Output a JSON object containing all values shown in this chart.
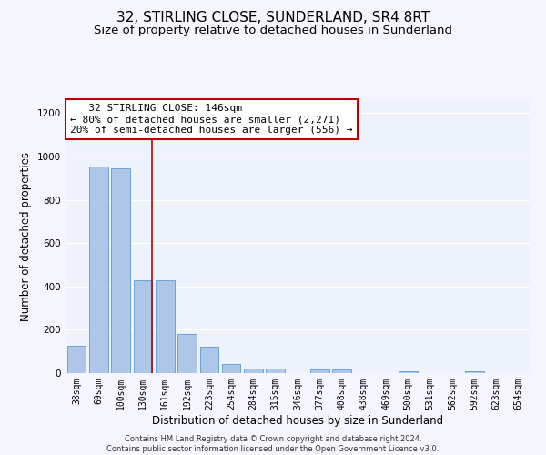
{
  "title": "32, STIRLING CLOSE, SUNDERLAND, SR4 8RT",
  "subtitle": "Size of property relative to detached houses in Sunderland",
  "xlabel": "Distribution of detached houses by size in Sunderland",
  "ylabel": "Number of detached properties",
  "footer_line1": "Contains HM Land Registry data © Crown copyright and database right 2024.",
  "footer_line2": "Contains public sector information licensed under the Open Government Licence v3.0.",
  "categories": [
    "38sqm",
    "69sqm",
    "100sqm",
    "130sqm",
    "161sqm",
    "192sqm",
    "223sqm",
    "254sqm",
    "284sqm",
    "315sqm",
    "346sqm",
    "377sqm",
    "408sqm",
    "438sqm",
    "469sqm",
    "500sqm",
    "531sqm",
    "562sqm",
    "592sqm",
    "623sqm",
    "654sqm"
  ],
  "values": [
    125,
    955,
    945,
    430,
    430,
    180,
    120,
    42,
    20,
    20,
    0,
    15,
    15,
    0,
    0,
    8,
    0,
    0,
    8,
    0,
    0
  ],
  "bar_color": "#aec6e8",
  "bar_edge_color": "#5b9bd5",
  "annotation_line1": "   32 STIRLING CLOSE: 146sqm",
  "annotation_line2": "← 80% of detached houses are smaller (2,271)",
  "annotation_line3": "20% of semi-detached houses are larger (556) →",
  "annotation_box_color": "#ffffff",
  "annotation_box_edge_color": "#c00000",
  "vline_color": "#c00000",
  "ylim": [
    0,
    1260
  ],
  "yticks": [
    0,
    200,
    400,
    600,
    800,
    1000,
    1200
  ],
  "background_color": "#eef2fb",
  "grid_color": "#ffffff",
  "title_fontsize": 11,
  "subtitle_fontsize": 9.5,
  "annotation_fontsize": 8,
  "ylabel_fontsize": 8.5,
  "xlabel_fontsize": 8.5,
  "tick_fontsize": 7,
  "footer_fontsize": 6
}
